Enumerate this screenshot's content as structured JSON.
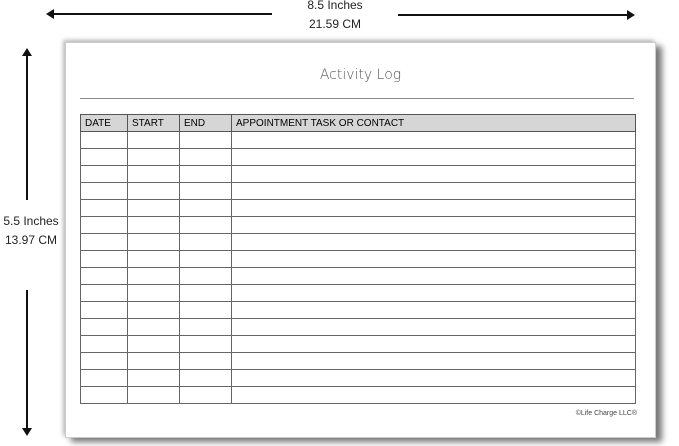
{
  "width_label": {
    "line1": "8.5 Inches",
    "line2": "21.59 CM"
  },
  "height_label": {
    "line1": "5.5 Inches",
    "line2": "13.97  CM"
  },
  "sheet": {
    "title": "Activity Log",
    "columns": [
      "DATE",
      "START",
      "END",
      "APPOINTMENT TASK OR CONTACT"
    ],
    "row_count": 16,
    "copyright": "©Life Charge LLC®"
  }
}
